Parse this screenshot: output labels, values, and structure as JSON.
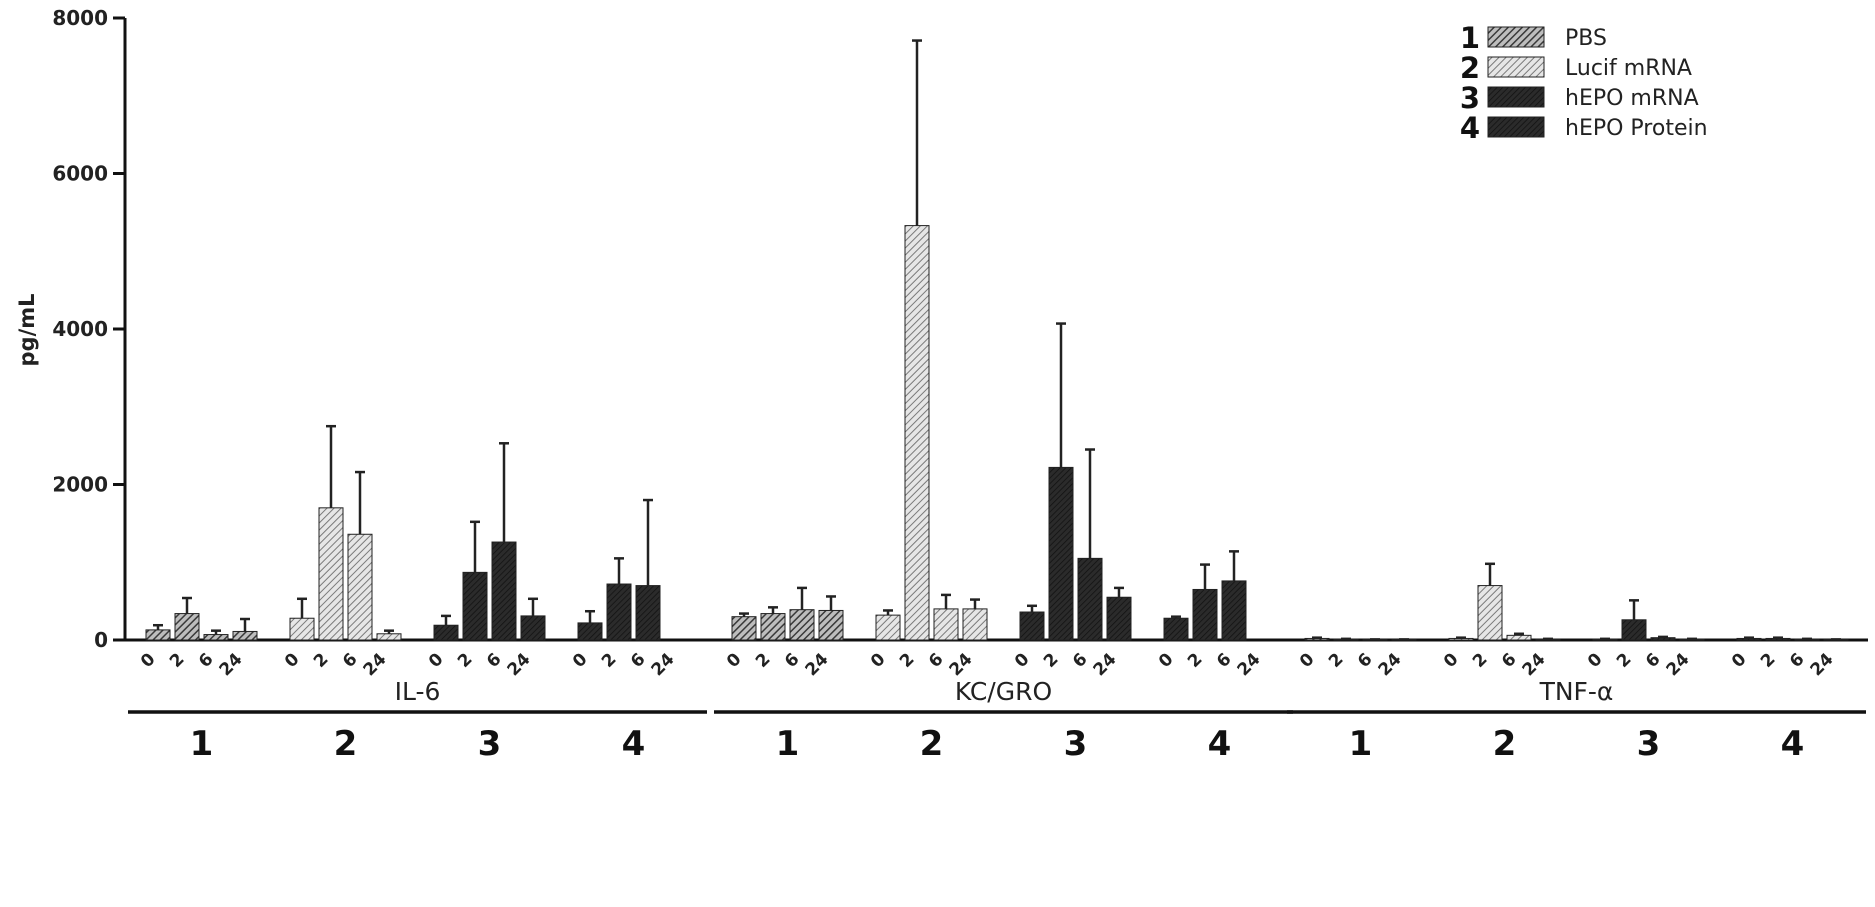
{
  "chart_data": {
    "type": "bar",
    "ylabel": "pg/mL",
    "ylim": [
      0,
      8000
    ],
    "yticks": [
      "0",
      "2000",
      "4000",
      "6000",
      "8000"
    ],
    "time_points": [
      "0",
      "2",
      "6",
      "24"
    ],
    "group_labels": [
      "1",
      "2",
      "3",
      "4"
    ],
    "legend": {
      "placement": "top-right",
      "entries": [
        {
          "number": "1",
          "label": "PBS",
          "pattern": "hatch-medium"
        },
        {
          "number": "2",
          "label": "Lucif mRNA",
          "pattern": "hatch-light"
        },
        {
          "number": "3",
          "label": "hEPO mRNA",
          "pattern": "solid-dark"
        },
        {
          "number": "4",
          "label": "hEPO Protein",
          "pattern": "solid-dark"
        }
      ]
    },
    "panels": [
      {
        "cytokine": "IL-6",
        "groups": [
          {
            "group": "1",
            "values": [
              130,
              340,
              70,
              110
            ],
            "errors": [
              60,
              200,
              50,
              160
            ]
          },
          {
            "group": "2",
            "values": [
              280,
              1700,
              1360,
              80
            ],
            "errors": [
              250,
              1050,
              800,
              40
            ]
          },
          {
            "group": "3",
            "values": [
              190,
              870,
              1260,
              310
            ],
            "errors": [
              120,
              650,
              1270,
              220
            ]
          },
          {
            "group": "4",
            "values": [
              220,
              720,
              700,
              0
            ],
            "errors": [
              150,
              330,
              1100,
              0
            ]
          }
        ]
      },
      {
        "cytokine": "KC/GRO",
        "groups": [
          {
            "group": "1",
            "values": [
              300,
              340,
              390,
              380
            ],
            "errors": [
              40,
              80,
              280,
              180
            ]
          },
          {
            "group": "2",
            "values": [
              320,
              5330,
              400,
              400
            ],
            "errors": [
              60,
              2380,
              180,
              120
            ]
          },
          {
            "group": "3",
            "values": [
              360,
              2220,
              1050,
              550
            ],
            "errors": [
              80,
              1850,
              1400,
              120
            ]
          },
          {
            "group": "4",
            "values": [
              280,
              650,
              760,
              0
            ],
            "errors": [
              20,
              320,
              380,
              0
            ]
          }
        ]
      },
      {
        "cytokine": "TNF-α",
        "groups": [
          {
            "group": "1",
            "values": [
              20,
              10,
              5,
              5
            ],
            "errors": [
              10,
              5,
              3,
              3
            ]
          },
          {
            "group": "2",
            "values": [
              20,
              700,
              60,
              10
            ],
            "errors": [
              10,
              280,
              20,
              5
            ]
          },
          {
            "group": "3",
            "values": [
              10,
              260,
              30,
              10
            ],
            "errors": [
              5,
              250,
              10,
              5
            ]
          },
          {
            "group": "4",
            "values": [
              20,
              20,
              10,
              5
            ],
            "errors": [
              10,
              10,
              5,
              3
            ]
          }
        ]
      }
    ],
    "colors": {
      "hatch-medium": "#5a5a5a",
      "hatch-light": "#9a9a9a",
      "solid-dark": "#2b2b2b"
    }
  }
}
